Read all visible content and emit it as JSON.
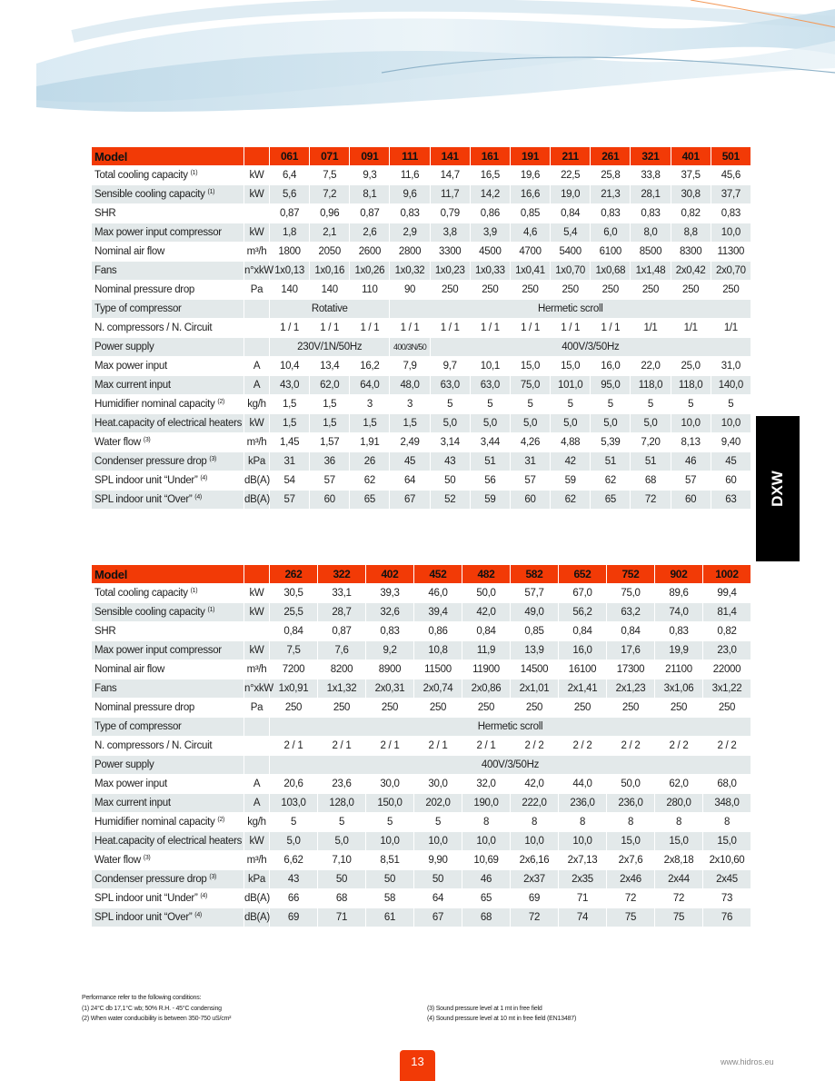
{
  "colors": {
    "accent": "#f23a06",
    "row_alt": "#e3e9ea",
    "tab": "#000000"
  },
  "side_tab": "DXW",
  "table1": {
    "header_label": "Model",
    "models": [
      "061",
      "071",
      "091",
      "111",
      "141",
      "161",
      "191",
      "211",
      "261",
      "321",
      "401",
      "501"
    ],
    "rows": [
      {
        "label": "Total cooling capacity",
        "sup": "(1)",
        "unit": "kW",
        "values": [
          "6,4",
          "7,5",
          "9,3",
          "11,6",
          "14,7",
          "16,5",
          "19,6",
          "22,5",
          "25,8",
          "33,8",
          "37,5",
          "45,6"
        ]
      },
      {
        "label": "Sensible cooling capacity",
        "sup": "(1)",
        "unit": "kW",
        "values": [
          "5,6",
          "7,2",
          "8,1",
          "9,6",
          "11,7",
          "14,2",
          "16,6",
          "19,0",
          "21,3",
          "28,1",
          "30,8",
          "37,7"
        ]
      },
      {
        "label": "SHR",
        "unit": "",
        "values": [
          "0,87",
          "0,96",
          "0,87",
          "0,83",
          "0,79",
          "0,86",
          "0,85",
          "0,84",
          "0,83",
          "0,83",
          "0,82",
          "0,83"
        ]
      },
      {
        "label": "Max power input compressor",
        "unit": "kW",
        "values": [
          "1,8",
          "2,1",
          "2,6",
          "2,9",
          "3,8",
          "3,9",
          "4,6",
          "5,4",
          "6,0",
          "8,0",
          "8,8",
          "10,0"
        ]
      },
      {
        "label": "Nominal air flow",
        "unit": "m³/h",
        "values": [
          "1800",
          "2050",
          "2600",
          "2800",
          "3300",
          "4500",
          "4700",
          "5400",
          "6100",
          "8500",
          "8300",
          "11300"
        ]
      },
      {
        "label": "Fans",
        "unit": "n°xkW",
        "values": [
          "1x0,13",
          "1x0,16",
          "1x0,26",
          "1x0,32",
          "1x0,23",
          "1x0,33",
          "1x0,41",
          "1x0,70",
          "1x0,68",
          "1x1,48",
          "2x0,42",
          "2x0,70"
        ]
      },
      {
        "label": "Nominal pressure drop",
        "unit": "Pa",
        "values": [
          "140",
          "140",
          "110",
          "90",
          "250",
          "250",
          "250",
          "250",
          "250",
          "250",
          "250",
          "250"
        ]
      },
      {
        "label": "Type of compressor",
        "unit": "",
        "merged": [
          {
            "text": "Rotative",
            "span": 3
          },
          {
            "text": "Hermetic scroll",
            "span": 9
          }
        ]
      },
      {
        "label": "N. compressors / N. Circuit",
        "unit": "",
        "values": [
          "1 / 1",
          "1 / 1",
          "1 / 1",
          "1 / 1",
          "1 / 1",
          "1 / 1",
          "1 / 1",
          "1 / 1",
          "1 / 1",
          "1/1",
          "1/1",
          "1/1"
        ]
      },
      {
        "label": "Power supply",
        "unit": "",
        "merged": [
          {
            "text": "230V/1N/50Hz",
            "span": 3
          },
          {
            "text": "400/3N/50",
            "span": 1,
            "small": true
          },
          {
            "text": "400V/3/50Hz",
            "span": 8
          }
        ]
      },
      {
        "label": "Max power input",
        "unit": "A",
        "values": [
          "10,4",
          "13,4",
          "16,2",
          "7,9",
          "9,7",
          "10,1",
          "15,0",
          "15,0",
          "16,0",
          "22,0",
          "25,0",
          "31,0"
        ]
      },
      {
        "label": "Max current input",
        "unit": "A",
        "values": [
          "43,0",
          "62,0",
          "64,0",
          "48,0",
          "63,0",
          "63,0",
          "75,0",
          "101,0",
          "95,0",
          "118,0",
          "118,0",
          "140,0"
        ]
      },
      {
        "label": "Humidifier nominal capacity",
        "sup": "(2)",
        "unit": "kg/h",
        "values": [
          "1,5",
          "1,5",
          "3",
          "3",
          "5",
          "5",
          "5",
          "5",
          "5",
          "5",
          "5",
          "5"
        ]
      },
      {
        "label": "Heat.capacity of electrical heaters",
        "unit": "kW",
        "values": [
          "1,5",
          "1,5",
          "1,5",
          "1,5",
          "5,0",
          "5,0",
          "5,0",
          "5,0",
          "5,0",
          "5,0",
          "10,0",
          "10,0"
        ]
      },
      {
        "label": "Water flow",
        "sup": "(3)",
        "unit": "m³/h",
        "values": [
          "1,45",
          "1,57",
          "1,91",
          "2,49",
          "3,14",
          "3,44",
          "4,26",
          "4,88",
          "5,39",
          "7,20",
          "8,13",
          "9,40"
        ]
      },
      {
        "label": "Condenser pressure drop",
        "sup": "(3)",
        "unit": "kPa",
        "values": [
          "31",
          "36",
          "26",
          "45",
          "43",
          "51",
          "31",
          "42",
          "51",
          "51",
          "46",
          "45"
        ]
      },
      {
        "label": "SPL indoor unit “Under”",
        "sup": "(4)",
        "unit": "dB(A)",
        "values": [
          "54",
          "57",
          "62",
          "64",
          "50",
          "56",
          "57",
          "59",
          "62",
          "68",
          "57",
          "60"
        ]
      },
      {
        "label": "SPL indoor unit “Over”",
        "sup": "(4)",
        "unit": "dB(A)",
        "values": [
          "57",
          "60",
          "65",
          "67",
          "52",
          "59",
          "60",
          "62",
          "65",
          "72",
          "60",
          "63"
        ]
      }
    ]
  },
  "table2": {
    "header_label": "Model",
    "models": [
      "262",
      "322",
      "402",
      "452",
      "482",
      "582",
      "652",
      "752",
      "902",
      "1002"
    ],
    "rows": [
      {
        "label": "Total cooling capacity",
        "sup": "(1)",
        "unit": "kW",
        "values": [
          "30,5",
          "33,1",
          "39,3",
          "46,0",
          "50,0",
          "57,7",
          "67,0",
          "75,0",
          "89,6",
          "99,4"
        ]
      },
      {
        "label": "Sensible cooling capacity",
        "sup": "(1)",
        "unit": "kW",
        "values": [
          "25,5",
          "28,7",
          "32,6",
          "39,4",
          "42,0",
          "49,0",
          "56,2",
          "63,2",
          "74,0",
          "81,4"
        ]
      },
      {
        "label": "SHR",
        "unit": "",
        "values": [
          "0,84",
          "0,87",
          "0,83",
          "0,86",
          "0,84",
          "0,85",
          "0,84",
          "0,84",
          "0,83",
          "0,82"
        ]
      },
      {
        "label": "Max power input compressor",
        "unit": "kW",
        "values": [
          "7,5",
          "7,6",
          "9,2",
          "10,8",
          "11,9",
          "13,9",
          "16,0",
          "17,6",
          "19,9",
          "23,0"
        ]
      },
      {
        "label": "Nominal air flow",
        "unit": "m³/h",
        "values": [
          "7200",
          "8200",
          "8900",
          "11500",
          "11900",
          "14500",
          "16100",
          "17300",
          "21100",
          "22000"
        ]
      },
      {
        "label": "Fans",
        "unit": "n°xkW",
        "values": [
          "1x0,91",
          "1x1,32",
          "2x0,31",
          "2x0,74",
          "2x0,86",
          "2x1,01",
          "2x1,41",
          "2x1,23",
          "3x1,06",
          "3x1,22"
        ]
      },
      {
        "label": "Nominal pressure drop",
        "unit": "Pa",
        "values": [
          "250",
          "250",
          "250",
          "250",
          "250",
          "250",
          "250",
          "250",
          "250",
          "250"
        ]
      },
      {
        "label": "Type of compressor",
        "unit": "",
        "merged": [
          {
            "text": "Hermetic scroll",
            "span": 10
          }
        ]
      },
      {
        "label": "N. compressors / N. Circuit",
        "unit": "",
        "values": [
          "2 / 1",
          "2 / 1",
          "2 / 1",
          "2 / 1",
          "2 / 1",
          "2 / 2",
          "2 / 2",
          "2 / 2",
          "2 / 2",
          "2 / 2"
        ]
      },
      {
        "label": "Power supply",
        "unit": "",
        "merged": [
          {
            "text": "400V/3/50Hz",
            "span": 10
          }
        ]
      },
      {
        "label": "Max power input",
        "unit": "A",
        "values": [
          "20,6",
          "23,6",
          "30,0",
          "30,0",
          "32,0",
          "42,0",
          "44,0",
          "50,0",
          "62,0",
          "68,0"
        ]
      },
      {
        "label": "Max current input",
        "unit": "A",
        "values": [
          "103,0",
          "128,0",
          "150,0",
          "202,0",
          "190,0",
          "222,0",
          "236,0",
          "236,0",
          "280,0",
          "348,0"
        ]
      },
      {
        "label": "Humidifier nominal capacity",
        "sup": "(2)",
        "unit": "kg/h",
        "values": [
          "5",
          "5",
          "5",
          "5",
          "8",
          "8",
          "8",
          "8",
          "8",
          "8"
        ]
      },
      {
        "label": "Heat.capacity of electrical heaters",
        "unit": "kW",
        "values": [
          "5,0",
          "5,0",
          "10,0",
          "10,0",
          "10,0",
          "10,0",
          "10,0",
          "15,0",
          "15,0",
          "15,0"
        ]
      },
      {
        "label": "Water flow",
        "sup": "(3)",
        "unit": "m³/h",
        "values": [
          "6,62",
          "7,10",
          "8,51",
          "9,90",
          "10,69",
          "2x6,16",
          "2x7,13",
          "2x7,6",
          "2x8,18",
          "2x10,60"
        ]
      },
      {
        "label": "Condenser pressure drop",
        "sup": "(3)",
        "unit": "kPa",
        "values": [
          "43",
          "50",
          "50",
          "50",
          "46",
          "2x37",
          "2x35",
          "2x46",
          "2x44",
          "2x45"
        ]
      },
      {
        "label": "SPL indoor unit “Under”",
        "sup": "(4)",
        "unit": "dB(A)",
        "values": [
          "66",
          "68",
          "58",
          "64",
          "65",
          "69",
          "71",
          "72",
          "72",
          "73"
        ]
      },
      {
        "label": "SPL indoor unit “Over”",
        "sup": "(4)",
        "unit": "dB(A)",
        "values": [
          "69",
          "71",
          "61",
          "67",
          "68",
          "72",
          "74",
          "75",
          "75",
          "76"
        ]
      }
    ]
  },
  "notes": {
    "intro": "Performance refer to the following conditions:",
    "n1": "(1) 24°C db  17,1°C wb; 50% R.H. - 45°C condensing",
    "n2": "(2) When water conducibility is between 350-750 uS/cm²",
    "n3": "(3) Sound pressure level at 1 mt in free field",
    "n4": "(4) Sound pressure level at 10 mt in free field (EN13487)"
  },
  "footer": {
    "page_number": "13",
    "website": "www.hidros.eu"
  }
}
